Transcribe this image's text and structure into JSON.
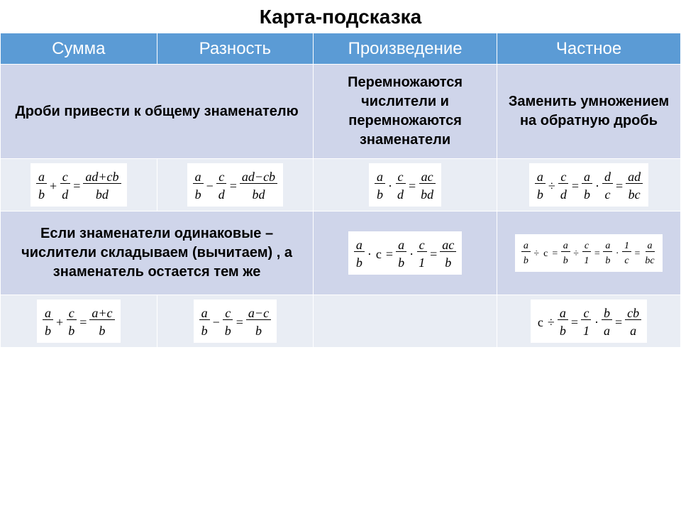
{
  "title": "Карта-подсказка",
  "title_fontsize": 28,
  "header_bg": "#5b9bd5",
  "header_color": "#ffffff",
  "header_fontsize": 24,
  "row_bg_light": "#e9edf4",
  "row_bg_mid": "#cfd5ea",
  "hint_fontsize": 20,
  "note_fontsize": 20,
  "formula_fontsize": 18,
  "small_formula_fontsize": 14,
  "column_widths_pct": [
    23,
    23,
    27,
    27
  ],
  "headers": [
    "Сумма",
    "Разность",
    "Произведение",
    "Частное"
  ],
  "hints": {
    "sum_diff": "Дроби привести к общему знаменателю",
    "product": "Перемножаются числители и перемножаются знаменатели",
    "quotient": "Заменить умножением на обратную дробь"
  },
  "note": "Если знаменатели одинаковые – числители складываем (вычитаем) , а знаменатель остается тем же",
  "f": {
    "sum1": {
      "l1n": "a",
      "l1d": "b",
      "op1": "+",
      "l2n": "c",
      "l2d": "d",
      "eq": "=",
      "rn": "ad+cb",
      "rd": "bd"
    },
    "diff1": {
      "l1n": "a",
      "l1d": "b",
      "op1": "−",
      "l2n": "c",
      "l2d": "d",
      "eq": "=",
      "rn": "ad−cb",
      "rd": "bd"
    },
    "prod1": {
      "l1n": "a",
      "l1d": "b",
      "op1": "·",
      "l2n": "c",
      "l2d": "d",
      "eq": "=",
      "rn": "ac",
      "rd": "bd"
    },
    "quot1": {
      "l1n": "a",
      "l1d": "b",
      "op1": "÷",
      "l2n": "c",
      "l2d": "d",
      "eq1": "=",
      "m1n": "a",
      "m1d": "b",
      "op2": "·",
      "m2n": "d",
      "m2d": "c",
      "eq2": "=",
      "rn": "ad",
      "rd": "bc"
    },
    "prod2": {
      "l1n": "a",
      "l1d": "b",
      "op1": "·",
      "c": "c",
      "eq1": "=",
      "m1n": "a",
      "m1d": "b",
      "op2": "·",
      "m2n": "c",
      "m2d": "1",
      "eq2": "=",
      "rn": "ac",
      "rd": "b"
    },
    "quot2": {
      "l1n": "a",
      "l1d": "b",
      "op1": "÷",
      "c": "c",
      "eq1": "=",
      "m1n": "a",
      "m1d": "b",
      "op2": "÷",
      "m2n": "c",
      "m2d": "1",
      "eq2": "=",
      "m3n": "a",
      "m3d": "b",
      "op3": "·",
      "m4n": "1",
      "m4d": "c",
      "eq3": "=",
      "rn": "a",
      "rd": "bc"
    },
    "sum2": {
      "l1n": "a",
      "l1d": "b",
      "op1": "+",
      "l2n": "c",
      "l2d": "b",
      "eq": "=",
      "rn": "a+c",
      "rd": "b"
    },
    "diff2": {
      "l1n": "a",
      "l1d": "b",
      "op1": "−",
      "l2n": "c",
      "l2d": "b",
      "eq": "=",
      "rn": "a−c",
      "rd": "b"
    },
    "quot3": {
      "c": "c",
      "op1": "÷",
      "l1n": "a",
      "l1d": "b",
      "eq1": "=",
      "m1n": "c",
      "m1d": "1",
      "op2": "·",
      "m2n": "b",
      "m2d": "a",
      "eq2": "=",
      "rn": "cb",
      "rd": "a"
    }
  }
}
